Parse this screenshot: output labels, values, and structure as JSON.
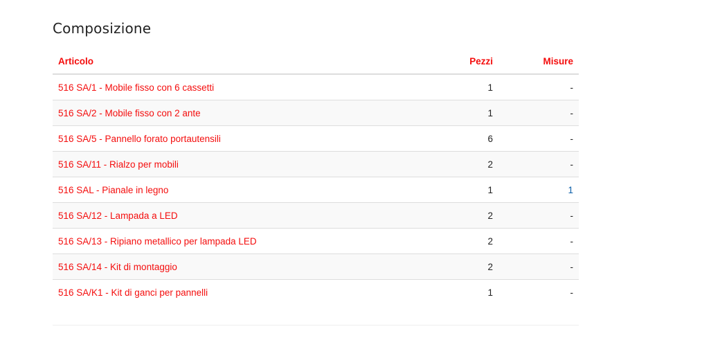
{
  "section_title": "Composizione",
  "table": {
    "headers": {
      "articolo": "Articolo",
      "pezzi": "Pezzi",
      "misure": "Misure"
    },
    "rows": [
      {
        "articolo": "516 SA/1 - Mobile fisso con 6 cassetti",
        "pezzi": "1",
        "misure": "-"
      },
      {
        "articolo": "516 SA/2 - Mobile fisso con 2 ante",
        "pezzi": "1",
        "misure": "-"
      },
      {
        "articolo": "516 SA/5 - Pannello forato portautensili",
        "pezzi": "6",
        "misure": "-"
      },
      {
        "articolo": "516 SA/11 - Rialzo per mobili",
        "pezzi": "2",
        "misure": "-"
      },
      {
        "articolo": "516 SAL - Pianale in legno",
        "pezzi": "1",
        "misure": "1"
      },
      {
        "articolo": "516 SA/12 - Lampada a LED",
        "pezzi": "2",
        "misure": "-"
      },
      {
        "articolo": "516 SA/13 - Ripiano metallico per lampada LED",
        "pezzi": "2",
        "misure": "-"
      },
      {
        "articolo": "516 SA/14 - Kit di montaggio",
        "pezzi": "2",
        "misure": "-"
      },
      {
        "articolo": "516 SA/K1 - Kit di ganci per pannelli",
        "pezzi": "1",
        "misure": "-"
      }
    ]
  },
  "colors": {
    "accent": "#f40d0d",
    "link_blue": "#0a5ea8"
  }
}
